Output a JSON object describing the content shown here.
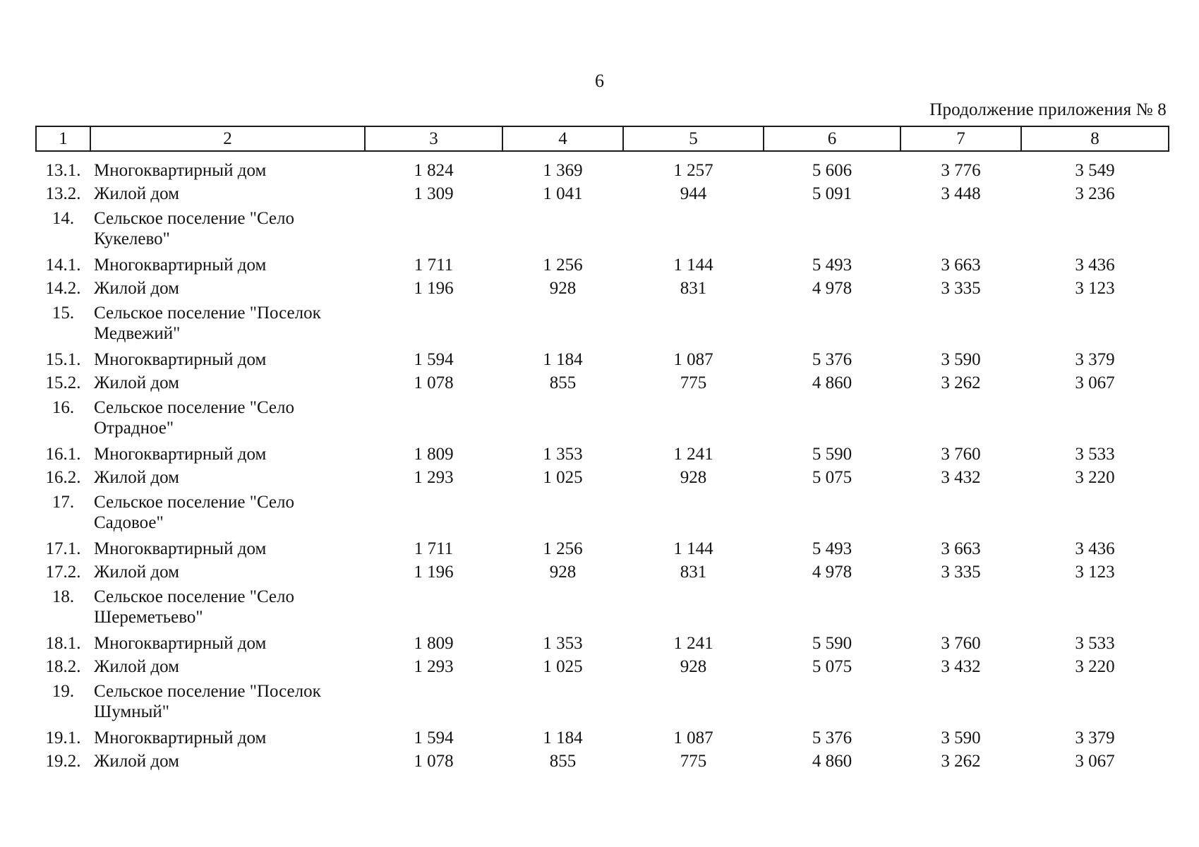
{
  "page": {
    "number": "6",
    "caption": "Продолжение приложения № 8"
  },
  "table": {
    "header": [
      "1",
      "2",
      "3",
      "4",
      "5",
      "6",
      "7",
      "8"
    ],
    "rows": [
      {
        "num": "13.1.",
        "name": "Многоквартирный дом",
        "values": [
          "1 824",
          "1 369",
          "1 257",
          "5 606",
          "3 776",
          "3 549"
        ]
      },
      {
        "num": "13.2.",
        "name": "Жилой дом",
        "values": [
          "1 309",
          "1 041",
          "944",
          "5 091",
          "3 448",
          "3 236"
        ]
      },
      {
        "num": "14.",
        "name": "Сельское поселение \"Село\nКукелево\"",
        "values": []
      },
      {
        "num": "14.1.",
        "name": "Многоквартирный дом",
        "values": [
          "1 711",
          "1 256",
          "1 144",
          "5 493",
          "3 663",
          "3 436"
        ]
      },
      {
        "num": "14.2.",
        "name": "Жилой дом",
        "values": [
          "1 196",
          "928",
          "831",
          "4 978",
          "3 335",
          "3 123"
        ]
      },
      {
        "num": "15.",
        "name": "Сельское поселение \"Поселок\nМедвежий\"",
        "values": []
      },
      {
        "num": "15.1.",
        "name": "Многоквартирный дом",
        "values": [
          "1 594",
          "1 184",
          "1 087",
          "5 376",
          "3 590",
          "3 379"
        ]
      },
      {
        "num": "15.2.",
        "name": "Жилой дом",
        "values": [
          "1 078",
          "855",
          "775",
          "4 860",
          "3 262",
          "3 067"
        ]
      },
      {
        "num": "16.",
        "name": "Сельское поселение \"Село\nОтрадное\"",
        "values": []
      },
      {
        "num": "16.1.",
        "name": "Многоквартирный дом",
        "values": [
          "1 809",
          "1 353",
          "1 241",
          "5 590",
          "3 760",
          "3 533"
        ]
      },
      {
        "num": "16.2.",
        "name": "Жилой дом",
        "values": [
          "1 293",
          "1 025",
          "928",
          "5 075",
          "3 432",
          "3 220"
        ]
      },
      {
        "num": "17.",
        "name": "Сельское поселение \"Село\nСадовое\"",
        "values": []
      },
      {
        "num": "17.1.",
        "name": "Многоквартирный дом",
        "values": [
          "1 711",
          "1 256",
          "1 144",
          "5 493",
          "3 663",
          "3 436"
        ]
      },
      {
        "num": "17.2.",
        "name": "Жилой дом",
        "values": [
          "1 196",
          "928",
          "831",
          "4 978",
          "3 335",
          "3 123"
        ]
      },
      {
        "num": "18.",
        "name": "Сельское поселение \"Село\nШереметьево\"",
        "values": []
      },
      {
        "num": "18.1.",
        "name": "Многоквартирный дом",
        "values": [
          "1 809",
          "1 353",
          "1 241",
          "5 590",
          "3 760",
          "3 533"
        ]
      },
      {
        "num": "18.2.",
        "name": "Жилой дом",
        "values": [
          "1 293",
          "1 025",
          "928",
          "5 075",
          "3 432",
          "3 220"
        ]
      },
      {
        "num": "19.",
        "name": "Сельское поселение \"Поселок\nШумный\"",
        "values": []
      },
      {
        "num": "19.1.",
        "name": "Многоквартирный дом",
        "values": [
          "1 594",
          "1 184",
          "1 087",
          "5 376",
          "3 590",
          "3 379"
        ]
      },
      {
        "num": "19.2.",
        "name": "Жилой дом",
        "values": [
          "1 078",
          "855",
          "775",
          "4 860",
          "3 262",
          "3 067"
        ]
      }
    ]
  }
}
